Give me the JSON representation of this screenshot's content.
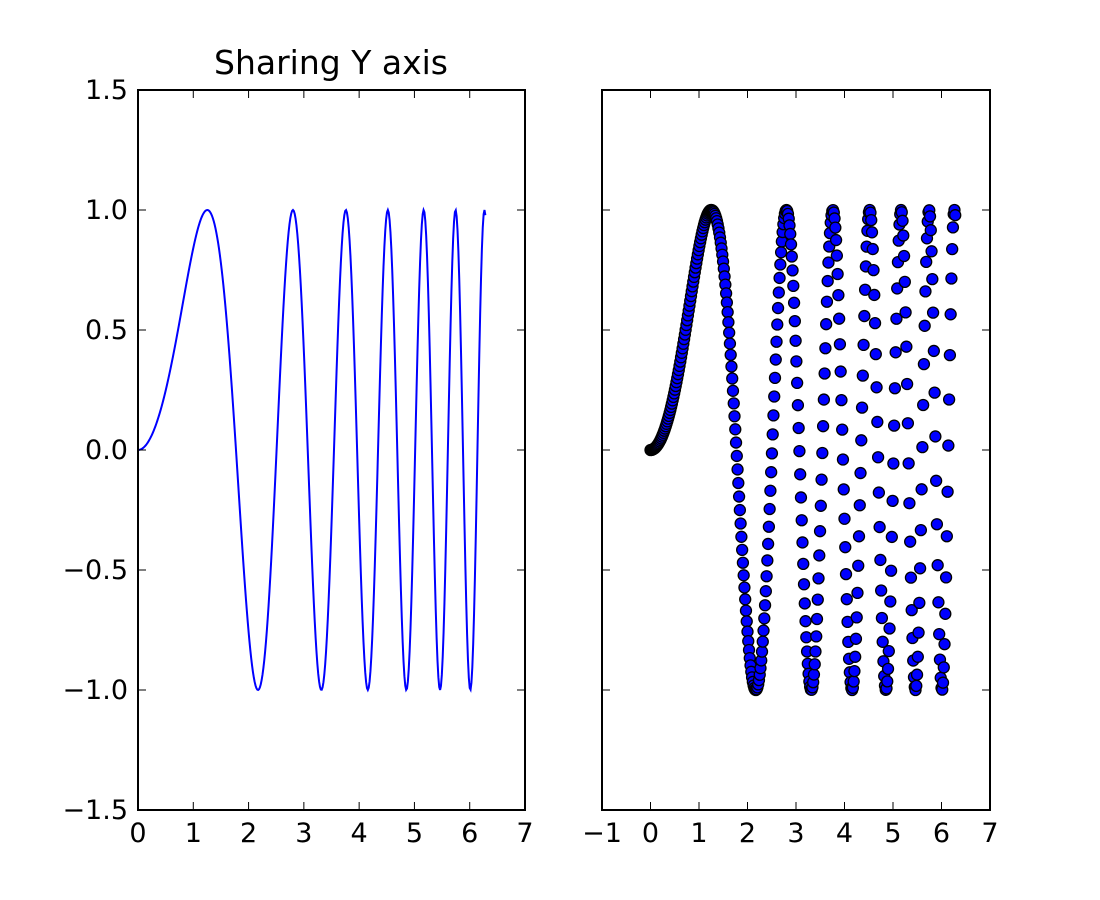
{
  "colors": {
    "line": "#0000ff",
    "marker_fill": "#0000ff",
    "marker_edge": "#000000",
    "axes": "#000000",
    "background": "#ffffff"
  },
  "chart_data": [
    {
      "type": "line",
      "title": "Sharing Y axis",
      "xlabel": "",
      "ylabel": "",
      "x_function": "linspace(0, 2*pi, 400)",
      "y_function": "sin(x**2)",
      "xlim": [
        0,
        7
      ],
      "ylim": [
        -1.5,
        1.5
      ],
      "xticks": [
        0,
        1,
        2,
        3,
        4,
        5,
        6,
        7
      ],
      "xtick_labels": [
        "0",
        "1",
        "2",
        "3",
        "4",
        "5",
        "6",
        "7"
      ],
      "yticks": [
        -1.5,
        -1.0,
        -0.5,
        0.0,
        0.5,
        1.0,
        1.5
      ],
      "ytick_labels": [
        "−1.5",
        "−1.0",
        "−0.5",
        "0.0",
        "0.5",
        "1.0",
        "1.5"
      ],
      "grid": false,
      "legend": "none"
    },
    {
      "type": "scatter",
      "title": "",
      "xlabel": "",
      "ylabel": "",
      "shares_y_with": 0,
      "x_function": "linspace(0, 2*pi, 400)",
      "y_function": "sin(x**2)",
      "xlim": [
        -1,
        7
      ],
      "ylim": [
        -1.5,
        1.5
      ],
      "xticks": [
        -1,
        0,
        1,
        2,
        3,
        4,
        5,
        6,
        7
      ],
      "xtick_labels": [
        "−1",
        "0",
        "1",
        "2",
        "3",
        "4",
        "5",
        "6",
        "7"
      ],
      "yticks": [
        -1.5,
        -1.0,
        -0.5,
        0.0,
        0.5,
        1.0,
        1.5
      ],
      "ytick_labels": [],
      "grid": false,
      "legend": "none"
    }
  ]
}
